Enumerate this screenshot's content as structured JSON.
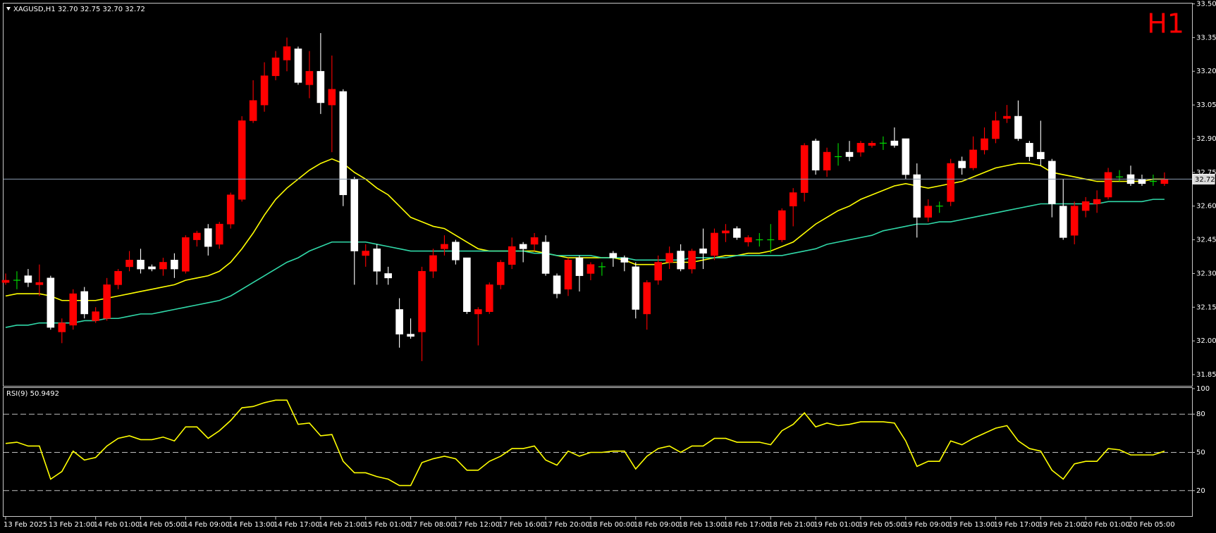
{
  "chart_data": [
    {
      "type": "candlestick",
      "header": "XAGUSD,H1  32.70 32.75 32.70 32.72",
      "timeframe_label": "H1",
      "bull_color": "#ff0000",
      "bear_color": "#ffffff",
      "doji_color": "#00e000",
      "categories": [
        "13 Feb 2025",
        null,
        null,
        null,
        "13 Feb 21:00",
        null,
        null,
        null,
        "14 Feb 01:00",
        null,
        null,
        null,
        "14 Feb 05:00",
        null,
        null,
        null,
        "14 Feb 09:00",
        null,
        null,
        null,
        "14 Feb 13:00",
        null,
        null,
        null,
        "14 Feb 17:00",
        null,
        null,
        null,
        "14 Feb 21:00",
        null,
        null,
        null,
        "15 Feb 01:00",
        null,
        null,
        null,
        "17 Feb 08:00",
        null,
        null,
        null,
        "17 Feb 12:00",
        null,
        null,
        null,
        "17 Feb 16:00",
        null,
        null,
        null,
        "17 Feb 20:00",
        null,
        null,
        null,
        "18 Feb 00:00",
        null,
        null,
        null,
        "18 Feb 09:00",
        null,
        null,
        null,
        "18 Feb 13:00",
        null,
        null,
        null,
        "18 Feb 17:00",
        null,
        null,
        null,
        "18 Feb 21:00",
        null,
        null,
        null,
        "19 Feb 01:00",
        null,
        null,
        null,
        "19 Feb 05:00",
        null,
        null,
        null,
        "19 Feb 09:00",
        null,
        null,
        null,
        "19 Feb 13:00",
        null,
        null,
        null,
        "19 Feb 17:00",
        null,
        null,
        null,
        "19 Feb 21:00",
        null,
        null,
        null,
        "20 Feb 01:00",
        null,
        null,
        null,
        "20 Feb 05:00",
        null,
        null,
        null
      ],
      "open": [
        32.26,
        32.27,
        32.29,
        32.25,
        32.28,
        32.04,
        32.07,
        32.22,
        32.09,
        32.1,
        32.25,
        32.33,
        32.36,
        32.33,
        32.32,
        32.36,
        32.31,
        32.45,
        32.5,
        32.43,
        32.52,
        32.63,
        32.98,
        33.05,
        33.18,
        33.25,
        33.3,
        33.14,
        33.2,
        33.05,
        33.11,
        32.72,
        32.38,
        32.41,
        32.3,
        32.14,
        32.03,
        32.04,
        32.31,
        32.41,
        32.44,
        32.37,
        32.12,
        32.13,
        32.25,
        32.34,
        32.43,
        32.43,
        32.44,
        32.29,
        32.23,
        32.37,
        32.3,
        32.33,
        32.39,
        32.37,
        32.33,
        32.12,
        32.27,
        32.35,
        32.4,
        32.32,
        32.41,
        32.38,
        32.48,
        32.5,
        32.44,
        32.45,
        32.45,
        32.45,
        32.6,
        32.66,
        32.89,
        32.76,
        32.82,
        32.84,
        32.84,
        32.87,
        32.88,
        32.89,
        32.9,
        32.74,
        32.55,
        32.6,
        32.62,
        32.8,
        32.77,
        32.85,
        32.9,
        32.99,
        33.0,
        32.88,
        32.84,
        32.8,
        32.6,
        32.47,
        32.58,
        32.61,
        32.64,
        32.73,
        32.74,
        32.72,
        32.71,
        32.7
      ],
      "high": [
        32.3,
        32.31,
        32.32,
        32.34,
        32.29,
        32.1,
        32.23,
        32.24,
        32.15,
        32.28,
        32.32,
        32.4,
        32.41,
        32.34,
        32.37,
        32.39,
        32.47,
        32.49,
        32.52,
        32.53,
        32.66,
        33.0,
        33.16,
        33.24,
        33.29,
        33.35,
        33.31,
        33.29,
        33.37,
        33.27,
        33.12,
        32.73,
        32.43,
        32.43,
        32.33,
        32.19,
        32.1,
        32.33,
        32.41,
        32.47,
        32.45,
        32.37,
        32.15,
        32.26,
        32.36,
        32.46,
        32.44,
        32.48,
        32.47,
        32.3,
        32.37,
        32.38,
        32.35,
        32.35,
        32.4,
        32.38,
        32.35,
        32.27,
        32.38,
        32.42,
        32.43,
        32.41,
        32.5,
        32.5,
        32.52,
        32.51,
        32.47,
        32.48,
        32.52,
        32.59,
        32.68,
        32.88,
        32.9,
        32.86,
        32.88,
        32.89,
        32.89,
        32.89,
        32.91,
        32.95,
        32.9,
        32.79,
        32.63,
        32.62,
        32.81,
        32.82,
        32.91,
        32.95,
        33.02,
        33.05,
        33.07,
        32.89,
        32.98,
        32.81,
        32.72,
        32.62,
        32.64,
        32.67,
        32.77,
        32.76,
        32.78,
        32.74,
        32.74,
        32.75
      ],
      "low": [
        32.25,
        32.23,
        32.24,
        32.2,
        32.05,
        31.99,
        32.05,
        32.1,
        32.08,
        32.09,
        32.23,
        32.31,
        32.3,
        32.31,
        32.29,
        32.28,
        32.3,
        32.42,
        32.38,
        32.41,
        32.5,
        32.62,
        32.97,
        33.02,
        33.16,
        33.2,
        33.14,
        33.08,
        33.01,
        32.84,
        32.6,
        32.25,
        32.33,
        32.25,
        32.25,
        31.97,
        32.01,
        31.91,
        32.28,
        32.38,
        32.34,
        32.12,
        31.98,
        32.12,
        32.23,
        32.32,
        32.35,
        32.4,
        32.29,
        32.19,
        32.2,
        32.22,
        32.27,
        32.29,
        32.33,
        32.31,
        32.1,
        32.05,
        32.25,
        32.32,
        32.31,
        32.3,
        32.32,
        32.36,
        32.44,
        32.45,
        32.42,
        32.42,
        32.39,
        32.44,
        32.51,
        32.62,
        32.74,
        32.73,
        32.78,
        32.8,
        32.82,
        32.86,
        32.85,
        32.86,
        32.72,
        32.46,
        32.53,
        32.57,
        32.6,
        32.74,
        32.76,
        32.83,
        32.88,
        32.97,
        32.89,
        32.8,
        32.78,
        32.55,
        32.45,
        32.43,
        32.55,
        32.57,
        32.63,
        32.71,
        32.69,
        32.69,
        32.69,
        32.69
      ],
      "close": [
        32.27,
        32.27,
        32.26,
        32.26,
        32.06,
        32.08,
        32.21,
        32.12,
        32.13,
        32.25,
        32.31,
        32.36,
        32.32,
        32.32,
        32.35,
        32.32,
        32.46,
        32.48,
        32.42,
        32.52,
        32.65,
        32.98,
        33.07,
        33.18,
        33.26,
        33.31,
        33.15,
        33.2,
        33.06,
        33.12,
        32.65,
        32.4,
        32.4,
        32.31,
        32.28,
        32.03,
        32.02,
        32.31,
        32.38,
        32.43,
        32.36,
        32.13,
        32.14,
        32.25,
        32.35,
        32.42,
        32.41,
        32.46,
        32.3,
        32.21,
        32.36,
        32.29,
        32.34,
        32.33,
        32.37,
        32.35,
        32.14,
        32.26,
        32.35,
        32.39,
        32.32,
        32.4,
        32.39,
        32.48,
        32.49,
        32.46,
        32.46,
        32.45,
        32.45,
        32.58,
        32.66,
        32.87,
        32.76,
        32.84,
        32.82,
        32.82,
        32.88,
        32.88,
        32.88,
        32.87,
        32.74,
        32.55,
        32.6,
        32.6,
        32.79,
        32.77,
        32.85,
        32.9,
        32.98,
        33.0,
        32.9,
        32.82,
        32.81,
        32.61,
        32.46,
        32.6,
        32.62,
        32.63,
        32.75,
        32.73,
        32.7,
        32.7,
        32.71,
        32.72
      ],
      "series": [
        {
          "color": "#ffff00",
          "values": [
            32.2,
            32.21,
            32.21,
            32.21,
            32.2,
            32.18,
            32.18,
            32.18,
            32.18,
            32.19,
            32.2,
            32.21,
            32.22,
            32.23,
            32.24,
            32.25,
            32.27,
            32.28,
            32.29,
            32.31,
            32.35,
            32.41,
            32.48,
            32.56,
            32.63,
            32.68,
            32.72,
            32.76,
            32.79,
            32.81,
            32.79,
            32.75,
            32.72,
            32.68,
            32.65,
            32.6,
            32.55,
            32.53,
            32.51,
            32.5,
            32.47,
            32.44,
            32.41,
            32.4,
            32.4,
            32.4,
            32.4,
            32.4,
            32.39,
            32.38,
            32.37,
            32.37,
            32.37,
            32.37,
            32.37,
            32.36,
            32.34,
            32.34,
            32.34,
            32.35,
            32.35,
            32.35,
            32.36,
            32.37,
            32.38,
            32.38,
            32.39,
            32.39,
            32.4,
            32.42,
            32.44,
            32.48,
            32.52,
            32.55,
            32.58,
            32.6,
            32.63,
            32.65,
            32.67,
            32.69,
            32.7,
            32.69,
            32.68,
            32.69,
            32.7,
            32.71,
            32.73,
            32.75,
            32.77,
            32.78,
            32.79,
            32.79,
            32.78,
            32.75,
            32.74,
            32.73,
            32.72,
            32.71,
            32.71,
            32.71,
            32.71,
            32.71,
            32.72,
            32.72
          ]
        },
        {
          "color": "#30d8a8",
          "values": [
            32.06,
            32.07,
            32.07,
            32.08,
            32.08,
            32.08,
            32.08,
            32.09,
            32.09,
            32.1,
            32.1,
            32.11,
            32.12,
            32.12,
            32.13,
            32.14,
            32.15,
            32.16,
            32.17,
            32.18,
            32.2,
            32.23,
            32.26,
            32.29,
            32.32,
            32.35,
            32.37,
            32.4,
            32.42,
            32.44,
            32.44,
            32.44,
            32.44,
            32.43,
            32.42,
            32.41,
            32.4,
            32.4,
            32.4,
            32.4,
            32.4,
            32.4,
            32.4,
            32.4,
            32.4,
            32.4,
            32.4,
            32.39,
            32.39,
            32.38,
            32.38,
            32.38,
            32.38,
            32.37,
            32.37,
            32.37,
            32.36,
            32.36,
            32.36,
            32.36,
            32.36,
            32.37,
            32.37,
            32.37,
            32.37,
            32.38,
            32.38,
            32.38,
            32.38,
            32.38,
            32.39,
            32.4,
            32.41,
            32.43,
            32.44,
            32.45,
            32.46,
            32.47,
            32.49,
            32.5,
            32.51,
            32.52,
            32.52,
            32.53,
            32.53,
            32.54,
            32.55,
            32.56,
            32.57,
            32.58,
            32.59,
            32.6,
            32.61,
            32.61,
            32.61,
            32.61,
            32.61,
            32.61,
            32.62,
            32.62,
            32.62,
            32.62,
            32.63,
            32.63
          ]
        }
      ],
      "ylim": [
        31.8,
        33.5
      ],
      "yticks": [
        {
          "value": 33.5,
          "label": "33.50"
        },
        33.35,
        {
          "value": 33.2,
          "label": "33.20"
        },
        33.05,
        {
          "value": 32.9,
          "label": "32.90"
        },
        32.75,
        {
          "value": 32.6,
          "label": "32.60"
        },
        32.45,
        {
          "value": 32.3,
          "label": "32.30"
        },
        32.15,
        {
          "value": 32,
          "label": "32.00"
        },
        31.85
      ],
      "grid": false,
      "price_line_color": "#8c9cb0"
    },
    {
      "type": "line",
      "title": "RSI(9) 50.9492",
      "color": "#ffff00",
      "values": [
        57,
        58,
        55,
        55,
        29,
        35,
        51,
        44,
        46,
        55,
        61,
        63,
        60,
        60,
        62,
        59,
        70,
        70,
        61,
        67,
        75,
        85,
        86,
        89,
        91,
        91,
        72,
        73,
        63,
        64,
        43,
        34,
        34,
        31,
        29,
        24,
        24,
        42,
        45,
        47,
        45,
        36,
        36,
        43,
        47,
        53,
        53,
        55,
        44,
        40,
        51,
        47,
        50,
        50,
        51,
        51,
        37,
        47,
        53,
        55,
        50,
        55,
        55,
        61,
        61,
        58,
        58,
        58,
        56,
        67,
        72,
        81,
        70,
        73,
        71,
        72,
        74,
        74,
        74,
        73,
        59,
        39,
        43,
        43,
        59,
        56,
        61,
        65,
        69,
        71,
        59,
        53,
        51,
        36,
        29,
        41,
        43,
        43,
        53,
        52,
        48,
        48,
        48,
        50.9492
      ],
      "ylim": [
        0,
        100
      ],
      "yticks": [
        100,
        80,
        50,
        20
      ],
      "levels": [
        80,
        50,
        20
      ],
      "grid": false
    }
  ]
}
